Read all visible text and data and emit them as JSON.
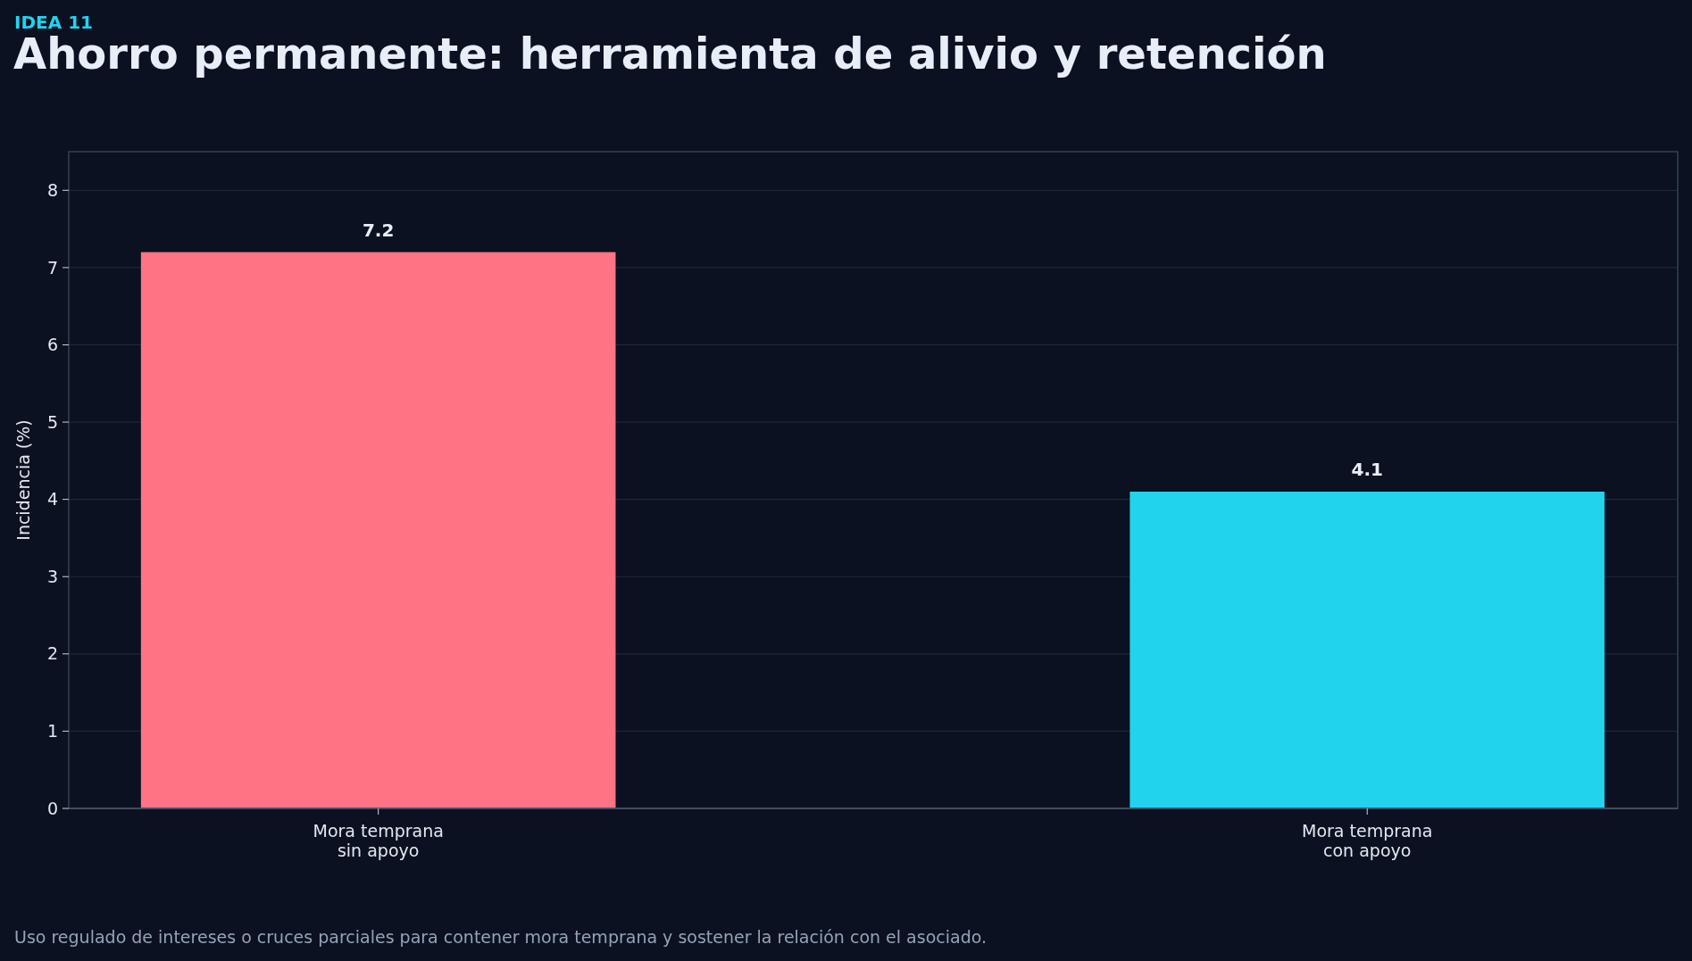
{
  "chart_data": {
    "type": "bar",
    "subtitle": "IDEA 11",
    "title": "Ahorro permanente: herramienta de alivio y retención",
    "ylabel": "Incidencia (%)",
    "categories": [
      "Mora temprana\nsin apoyo",
      "Mora temprana\ncon apoyo"
    ],
    "values": [
      7.2,
      4.1
    ],
    "colors": [
      "#ff7385",
      "#22d3ee"
    ],
    "ylim": [
      0,
      8.5
    ],
    "yticks": [
      0,
      1,
      2,
      3,
      4,
      5,
      6,
      7,
      8
    ],
    "grid": "y",
    "data_labels": true,
    "annotations": [
      "Uso regulado de intereses o cruces parciales para contener mora temprana y sostener la relación con el asociado."
    ]
  }
}
